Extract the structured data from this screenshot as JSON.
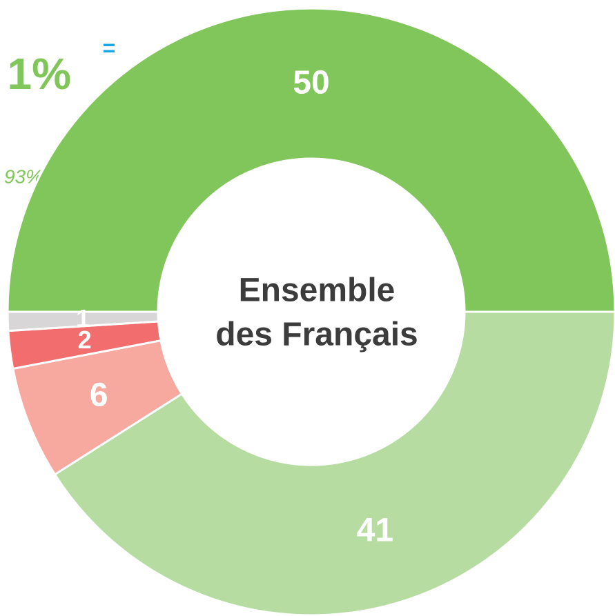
{
  "chart_data": {
    "type": "donut",
    "values": [
      50,
      41,
      6,
      2,
      1
    ],
    "colors": [
      "#80c65a",
      "#b6dca2",
      "#f7a9a0",
      "#f26e6e",
      "#d9d6d8"
    ],
    "center_label": [
      "Ensemble",
      "des Français"
    ],
    "annotations": [
      "1%",
      "=",
      "93%"
    ]
  }
}
